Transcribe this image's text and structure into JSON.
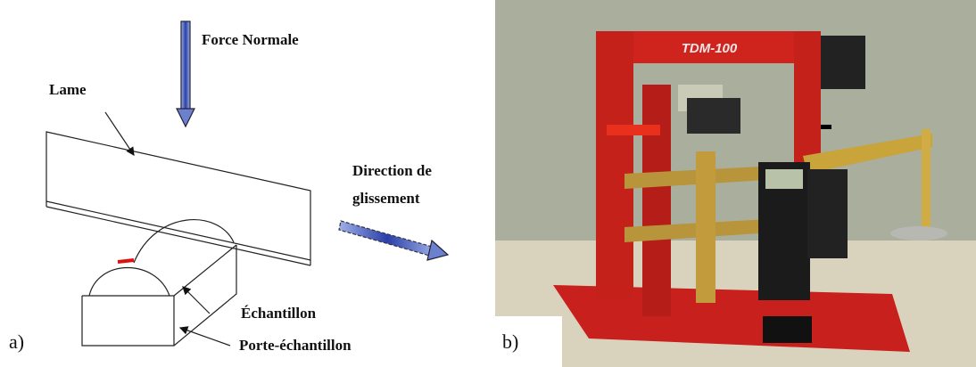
{
  "panels": [
    {
      "tag": "a)",
      "labels": {
        "force": "Force Normale",
        "blade": "Lame",
        "direction": [
          "Direction de",
          "glissement"
        ],
        "sample": "Échantillon",
        "holder": "Porte-échantillon"
      }
    },
    {
      "tag": "b)",
      "device_label": "TDM-100"
    }
  ]
}
